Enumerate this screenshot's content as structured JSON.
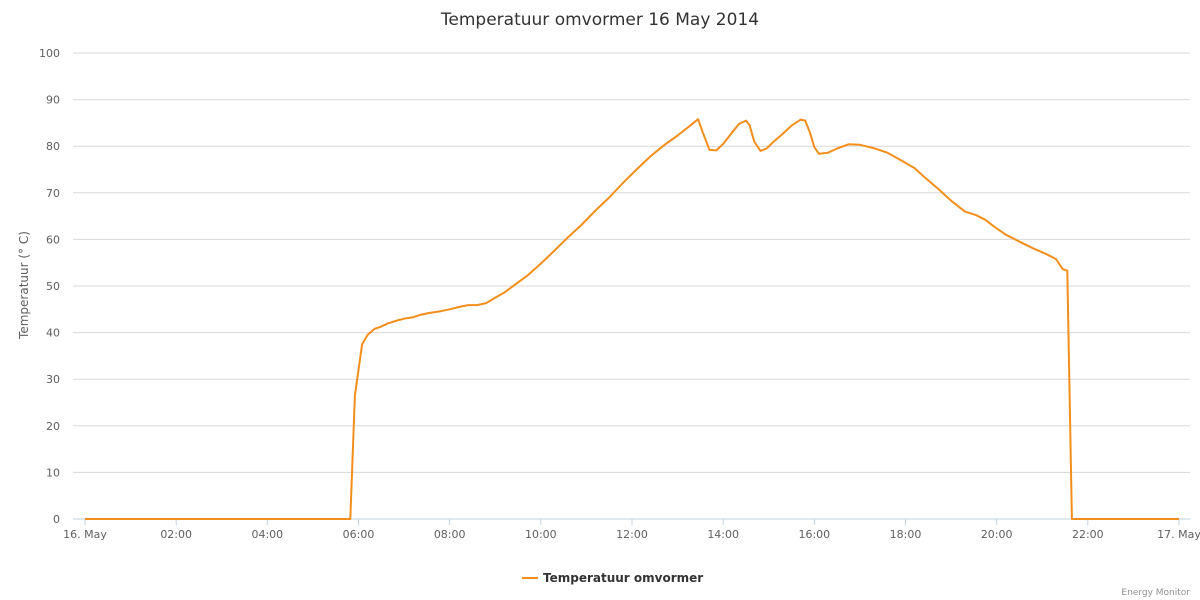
{
  "chart_data": {
    "type": "line",
    "title": "Temperatuur omvormer 16 May 2014",
    "ylabel": "Temperatuur (° C)",
    "xlabel": "",
    "ylim": [
      0,
      100
    ],
    "yticks": [
      0,
      10,
      20,
      30,
      40,
      50,
      60,
      70,
      80,
      90,
      100
    ],
    "xlim": [
      "16-05-2014 00:00",
      "17-05-2014 00:00"
    ],
    "xticks": [
      {
        "hour": 0,
        "label": "16. May"
      },
      {
        "hour": 2,
        "label": "02:00"
      },
      {
        "hour": 4,
        "label": "04:00"
      },
      {
        "hour": 6,
        "label": "06:00"
      },
      {
        "hour": 8,
        "label": "08:00"
      },
      {
        "hour": 10,
        "label": "10:00"
      },
      {
        "hour": 12,
        "label": "12:00"
      },
      {
        "hour": 14,
        "label": "14:00"
      },
      {
        "hour": 16,
        "label": "16:00"
      },
      {
        "hour": 18,
        "label": "18:00"
      },
      {
        "hour": 20,
        "label": "20:00"
      },
      {
        "hour": 22,
        "label": "22:00"
      },
      {
        "hour": 24,
        "label": "17. May"
      }
    ],
    "grid": true,
    "legend_position": "bottom-center",
    "series": [
      {
        "name": "Temperatuur omvormer",
        "color": "#f28f1c",
        "x_unit": "hours",
        "points": [
          [
            0.0,
            0
          ],
          [
            5.82,
            0
          ],
          [
            5.92,
            26.5
          ],
          [
            6.08,
            37.5
          ],
          [
            6.2,
            39.5
          ],
          [
            6.35,
            40.8
          ],
          [
            6.5,
            41.3
          ],
          [
            6.65,
            42.0
          ],
          [
            6.85,
            42.6
          ],
          [
            7.05,
            43.1
          ],
          [
            7.2,
            43.3
          ],
          [
            7.35,
            43.8
          ],
          [
            7.55,
            44.2
          ],
          [
            7.8,
            44.6
          ],
          [
            8.0,
            45.0
          ],
          [
            8.2,
            45.5
          ],
          [
            8.4,
            45.9
          ],
          [
            8.6,
            45.9
          ],
          [
            8.8,
            46.3
          ],
          [
            9.0,
            47.5
          ],
          [
            9.2,
            48.6
          ],
          [
            9.45,
            50.4
          ],
          [
            9.7,
            52.2
          ],
          [
            10.0,
            54.8
          ],
          [
            10.3,
            57.6
          ],
          [
            10.6,
            60.5
          ],
          [
            10.9,
            63.2
          ],
          [
            11.2,
            66.2
          ],
          [
            11.5,
            69.0
          ],
          [
            11.8,
            72.1
          ],
          [
            12.1,
            75.0
          ],
          [
            12.4,
            77.8
          ],
          [
            12.7,
            80.2
          ],
          [
            13.0,
            82.3
          ],
          [
            13.25,
            84.2
          ],
          [
            13.45,
            85.8
          ],
          [
            13.55,
            83.0
          ],
          [
            13.7,
            79.2
          ],
          [
            13.85,
            79.1
          ],
          [
            14.0,
            80.5
          ],
          [
            14.2,
            83.0
          ],
          [
            14.35,
            84.8
          ],
          [
            14.5,
            85.5
          ],
          [
            14.58,
            84.5
          ],
          [
            14.68,
            81.0
          ],
          [
            14.82,
            79.0
          ],
          [
            14.95,
            79.5
          ],
          [
            15.1,
            80.9
          ],
          [
            15.3,
            82.6
          ],
          [
            15.5,
            84.4
          ],
          [
            15.7,
            85.7
          ],
          [
            15.8,
            85.5
          ],
          [
            15.9,
            83.0
          ],
          [
            16.0,
            79.8
          ],
          [
            16.1,
            78.4
          ],
          [
            16.3,
            78.6
          ],
          [
            16.5,
            79.5
          ],
          [
            16.75,
            80.4
          ],
          [
            17.0,
            80.3
          ],
          [
            17.3,
            79.6
          ],
          [
            17.6,
            78.6
          ],
          [
            17.9,
            77.0
          ],
          [
            18.2,
            75.3
          ],
          [
            18.4,
            73.5
          ],
          [
            18.7,
            71.0
          ],
          [
            19.0,
            68.3
          ],
          [
            19.3,
            66.0
          ],
          [
            19.55,
            65.2
          ],
          [
            19.75,
            64.2
          ],
          [
            19.95,
            62.7
          ],
          [
            20.2,
            61.0
          ],
          [
            20.5,
            59.5
          ],
          [
            20.8,
            58.1
          ],
          [
            21.1,
            56.8
          ],
          [
            21.3,
            55.8
          ],
          [
            21.45,
            53.6
          ],
          [
            21.55,
            53.3
          ],
          [
            21.65,
            0
          ],
          [
            24.0,
            0
          ]
        ]
      }
    ]
  },
  "credits": "Energy Monitor"
}
